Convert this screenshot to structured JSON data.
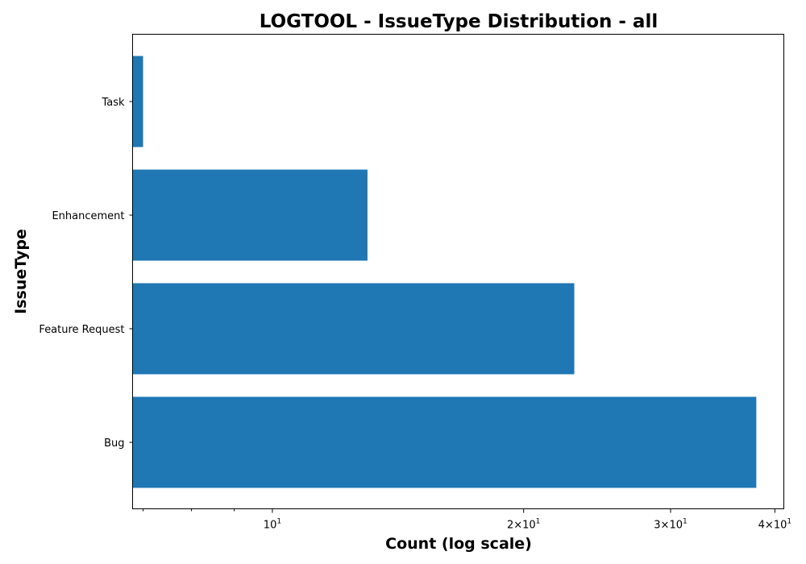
{
  "chart_data": {
    "type": "bar",
    "orientation": "horizontal",
    "title": "LOGTOOL - IssueType Distribution - all",
    "xlabel": "Count (log scale)",
    "ylabel": "IssueType",
    "x_scale": "log",
    "xlim": [
      6.8,
      41
    ],
    "categories": [
      "Task",
      "Enhancement",
      "Feature Request",
      "Bug"
    ],
    "values": [
      7,
      13,
      23,
      38
    ],
    "bar_color": "#1f77b4",
    "x_ticks": [
      {
        "value": 10,
        "base": "10",
        "exp": "1",
        "mult": ""
      },
      {
        "value": 20,
        "base": "10",
        "exp": "1",
        "mult": "2×"
      },
      {
        "value": 30,
        "base": "10",
        "exp": "1",
        "mult": "3×"
      },
      {
        "value": 40,
        "base": "10",
        "exp": "1",
        "mult": "4×"
      }
    ],
    "x_minor_ticks": [
      7,
      8,
      9
    ],
    "grid": false,
    "legend": "none"
  }
}
